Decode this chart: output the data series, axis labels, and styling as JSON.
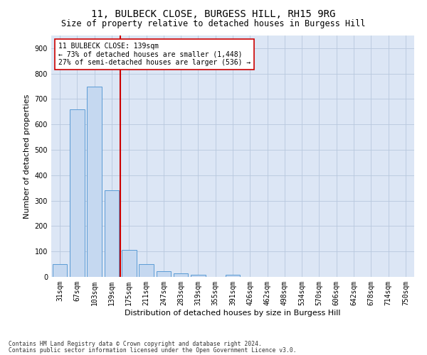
{
  "title": "11, BULBECK CLOSE, BURGESS HILL, RH15 9RG",
  "subtitle": "Size of property relative to detached houses in Burgess Hill",
  "xlabel": "Distribution of detached houses by size in Burgess Hill",
  "ylabel": "Number of detached properties",
  "footnote1": "Contains HM Land Registry data © Crown copyright and database right 2024.",
  "footnote2": "Contains public sector information licensed under the Open Government Licence v3.0.",
  "categories": [
    "31sqm",
    "67sqm",
    "103sqm",
    "139sqm",
    "175sqm",
    "211sqm",
    "247sqm",
    "283sqm",
    "319sqm",
    "355sqm",
    "391sqm",
    "426sqm",
    "462sqm",
    "498sqm",
    "534sqm",
    "570sqm",
    "606sqm",
    "642sqm",
    "678sqm",
    "714sqm",
    "750sqm"
  ],
  "values": [
    50,
    660,
    750,
    340,
    107,
    50,
    22,
    14,
    9,
    0,
    8,
    0,
    0,
    0,
    0,
    0,
    0,
    0,
    0,
    0,
    0
  ],
  "bar_color": "#c5d8f0",
  "bar_edge_color": "#5b9bd5",
  "red_line_x": 3.5,
  "red_line_color": "#cc0000",
  "annotation_line1": "11 BULBECK CLOSE: 139sqm",
  "annotation_line2": "← 73% of detached houses are smaller (1,448)",
  "annotation_line3": "27% of semi-detached houses are larger (536) →",
  "annotation_box_color": "#ffffff",
  "annotation_box_edge_color": "#cc0000",
  "ylim": [
    0,
    950
  ],
  "yticks": [
    0,
    100,
    200,
    300,
    400,
    500,
    600,
    700,
    800,
    900
  ],
  "bg_color": "#ffffff",
  "plot_bg_color": "#dce6f5",
  "grid_color": "#b8c8de",
  "title_fontsize": 10,
  "subtitle_fontsize": 8.5,
  "axis_label_fontsize": 8,
  "tick_fontsize": 7,
  "annotation_fontsize": 7,
  "footnote_fontsize": 5.8
}
